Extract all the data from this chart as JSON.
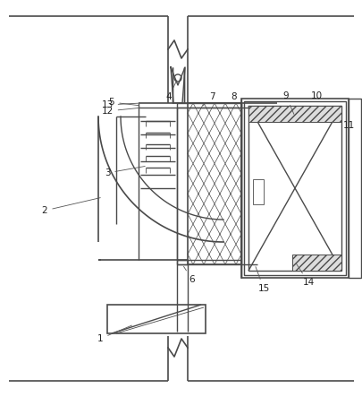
{
  "bg_color": "#ffffff",
  "line_color": "#4a4a4a",
  "fig_width": 4.06,
  "fig_height": 4.43,
  "dpi": 100,
  "lw": 1.0,
  "lw_thin": 0.6,
  "lw_thick": 1.2
}
